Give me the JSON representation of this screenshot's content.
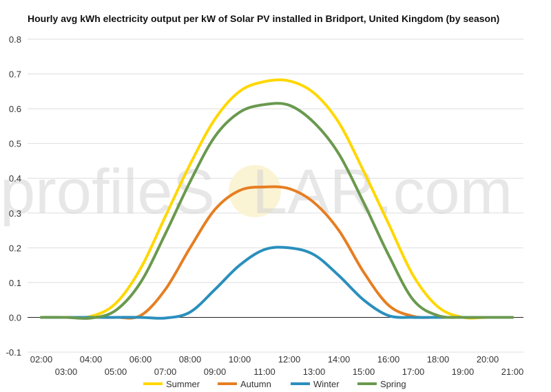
{
  "chart_data": {
    "type": "line",
    "title": "Hourly avg kWh electricity output per kW of Solar PV installed in Bridport, United Kingdom (by season)",
    "xlabel": "",
    "ylabel": "",
    "x": [
      "02:00",
      "03:00",
      "04:00",
      "05:00",
      "06:00",
      "07:00",
      "08:00",
      "09:00",
      "10:00",
      "11:00",
      "12:00",
      "13:00",
      "14:00",
      "15:00",
      "16:00",
      "17:00",
      "18:00",
      "19:00",
      "20:00",
      "21:00"
    ],
    "x_tick_labels": [
      "02:00",
      "03:00",
      "04:00",
      "05:00",
      "06:00",
      "07:00",
      "08:00",
      "09:00",
      "10:00",
      "11:00",
      "12:00",
      "13:00",
      "14:00",
      "15:00",
      "16:00",
      "17:00",
      "18:00",
      "19:00",
      "20:00",
      "21:00"
    ],
    "ylim": [
      -0.1,
      0.8
    ],
    "y_ticks": [
      "-0.1",
      "0.0",
      "0.1",
      "0.2",
      "0.3",
      "0.4",
      "0.5",
      "0.6",
      "0.7",
      "0.8"
    ],
    "y_tick_values": [
      -0.1,
      0,
      0.1,
      0.2,
      0.3,
      0.4,
      0.5,
      0.6,
      0.7,
      0.8
    ],
    "grid": true,
    "legend_position": "bottom",
    "series": [
      {
        "name": "Summer",
        "color": "#FFD700",
        "values": [
          0,
          0,
          0.003,
          0.04,
          0.14,
          0.29,
          0.44,
          0.57,
          0.65,
          0.678,
          0.68,
          0.645,
          0.56,
          0.42,
          0.27,
          0.12,
          0.03,
          0.0,
          0,
          0
        ]
      },
      {
        "name": "Autumn",
        "color": "#E67E22",
        "values": [
          0,
          0,
          0,
          0,
          0.005,
          0.08,
          0.2,
          0.31,
          0.365,
          0.375,
          0.37,
          0.33,
          0.25,
          0.13,
          0.035,
          0.003,
          0,
          0,
          0,
          0
        ]
      },
      {
        "name": "Winter",
        "color": "#2A8FBD",
        "values": [
          0,
          0,
          0,
          0,
          0,
          -0.002,
          0.015,
          0.08,
          0.15,
          0.195,
          0.2,
          0.18,
          0.12,
          0.05,
          0.005,
          0,
          0,
          0,
          0,
          0
        ]
      },
      {
        "name": "Spring",
        "color": "#6A994E",
        "values": [
          0,
          0,
          -0.002,
          0.02,
          0.1,
          0.24,
          0.39,
          0.52,
          0.59,
          0.612,
          0.61,
          0.56,
          0.47,
          0.33,
          0.18,
          0.05,
          0.005,
          0,
          0,
          0
        ]
      }
    ]
  },
  "watermark": {
    "prefix": "profileS",
    "suffix": "LAR.com"
  }
}
